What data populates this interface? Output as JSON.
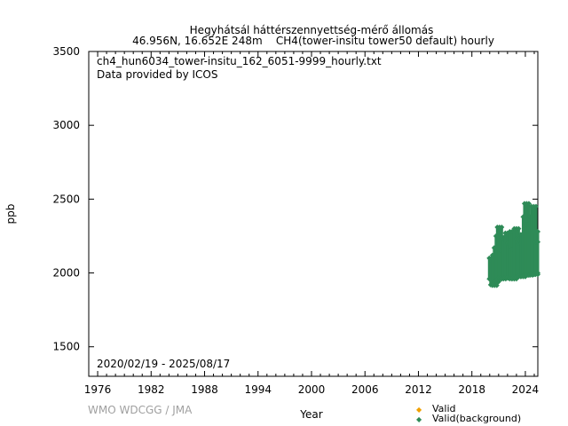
{
  "chart_data": {
    "type": "scatter",
    "title": "Hegyhátsál háttérszennyettség-mérő állomás",
    "subtitle": "46.956N, 16.652E 248m    CH4(tower-insitu tower50 default) hourly",
    "annotations": [
      "ch4_hun6034_tower-insitu_162_6051-9999_hourly.txt",
      "Data provided by ICOS"
    ],
    "date_range": "2020/02/19 - 2025/08/17",
    "xlabel": "Year",
    "ylabel": "ppb",
    "xlim": [
      1975,
      2025.4
    ],
    "ylim": [
      1300,
      3500
    ],
    "xticks": [
      1976,
      1982,
      1988,
      1994,
      2000,
      2006,
      2012,
      2018,
      2024
    ],
    "yticks": [
      1500,
      2000,
      2500,
      3000,
      3500
    ],
    "credit": "WMO WDCGG / JMA",
    "legend": [
      {
        "label": "Valid",
        "color": "#f0a000"
      },
      {
        "label": "Valid(background)",
        "color": "#2e8b57"
      }
    ],
    "series": [
      {
        "name": "Valid(background)",
        "color": "#2e8b57",
        "ranges_year_min_max": [
          [
            2020.15,
            1960,
            2100
          ],
          [
            2020.3,
            1920,
            2090
          ],
          [
            2020.5,
            1915,
            2120
          ],
          [
            2020.7,
            1940,
            2170
          ],
          [
            2020.9,
            1950,
            2250
          ],
          [
            2021.05,
            1960,
            2310
          ],
          [
            2021.25,
            1970,
            2240
          ],
          [
            2021.5,
            1960,
            2150
          ],
          [
            2021.75,
            1965,
            2230
          ],
          [
            2021.95,
            1970,
            2270
          ],
          [
            2022.2,
            1970,
            2200
          ],
          [
            2022.45,
            1960,
            2280
          ],
          [
            2022.7,
            1960,
            2160
          ],
          [
            2022.95,
            1975,
            2300
          ],
          [
            2023.2,
            1975,
            2230
          ],
          [
            2023.45,
            1980,
            2200
          ],
          [
            2023.7,
            1975,
            2260
          ],
          [
            2023.95,
            1980,
            2380
          ],
          [
            2024.1,
            1985,
            2470
          ],
          [
            2024.3,
            1990,
            2330
          ],
          [
            2024.5,
            1985,
            2280
          ],
          [
            2024.7,
            1990,
            2380
          ],
          [
            2024.9,
            1995,
            2450
          ],
          [
            2025.1,
            1990,
            2280
          ],
          [
            2025.35,
            2000,
            2210
          ]
        ]
      }
    ]
  }
}
